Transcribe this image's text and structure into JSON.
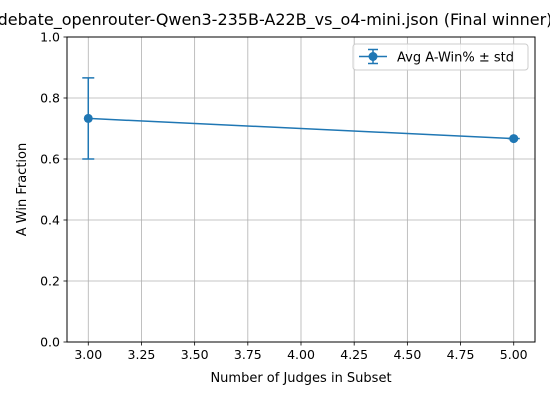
{
  "chart_data": {
    "type": "line",
    "title": "debate_openrouter-Qwen3-235B-A22B_vs_o4-mini.json (Final winner)",
    "xlabel": "Number of Judges in Subset",
    "ylabel": "A Win Fraction",
    "xlim": [
      2.9,
      5.1
    ],
    "ylim": [
      0.0,
      1.0
    ],
    "x_ticks": [
      3.0,
      3.25,
      3.5,
      3.75,
      4.0,
      4.25,
      4.5,
      4.75,
      5.0
    ],
    "x_tick_labels": [
      "3.00",
      "3.25",
      "3.50",
      "3.75",
      "4.00",
      "4.25",
      "4.50",
      "4.75",
      "5.00"
    ],
    "y_ticks": [
      0.0,
      0.2,
      0.4,
      0.6,
      0.8,
      1.0
    ],
    "y_tick_labels": [
      "0.0",
      "0.2",
      "0.4",
      "0.6",
      "0.8",
      "1.0"
    ],
    "grid": true,
    "legend_position": "top-right",
    "series": [
      {
        "name": "Avg A-Win% ± std",
        "color": "#1f77b4",
        "x": [
          3,
          5
        ],
        "y": [
          0.733,
          0.667
        ],
        "error": [
          0.133,
          0.0
        ]
      }
    ]
  }
}
